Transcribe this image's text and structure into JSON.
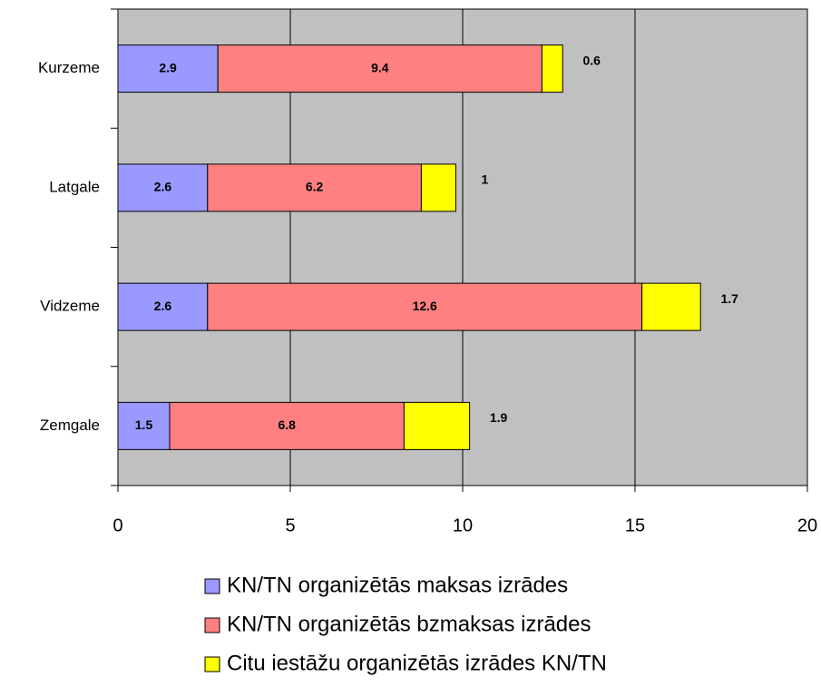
{
  "chart_data": {
    "type": "stacked-barh",
    "categories": [
      "Kurzeme",
      "Latgale",
      "Vidzeme",
      "Zemgale"
    ],
    "series": [
      {
        "name": "KN/TN organizētās maksas izrādes",
        "color": "#9999ff",
        "values": [
          2.9,
          2.6,
          2.6,
          1.5
        ]
      },
      {
        "name": "KN/TN organizētās bzmaksas izrādes",
        "color": "#ff8080",
        "values": [
          9.4,
          6.2,
          12.6,
          6.8
        ]
      },
      {
        "name": "Citu iestāžu organizētās izrādes KN/TN",
        "color": "#ffff00",
        "values": [
          0.6,
          1,
          1.7,
          1.9
        ]
      }
    ],
    "xlim": [
      0,
      20
    ],
    "xticks": [
      0,
      5,
      10,
      15,
      20
    ],
    "grid": true,
    "legend": "bottom"
  }
}
